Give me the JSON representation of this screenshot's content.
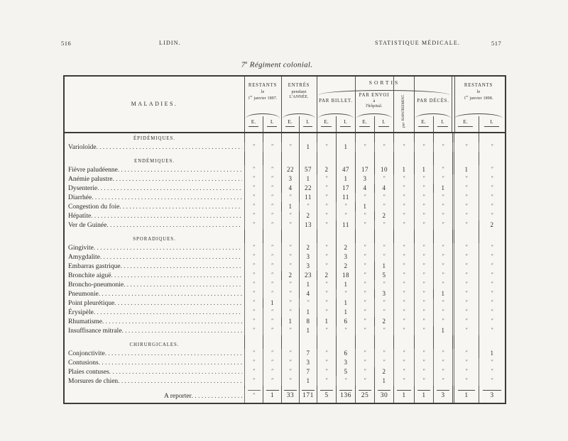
{
  "page": {
    "left_page_number": "516",
    "left_running_title": "LIDIN.",
    "right_running_title": "STATISTIQUE MÉDICALE.",
    "right_page_number": "517"
  },
  "title": {
    "num": "7",
    "sup": "e",
    "rest": "Régiment colonial."
  },
  "table": {
    "header": {
      "maladies": "MALADIES.",
      "sortis": "SORTIS",
      "e": "E.",
      "i": "I.",
      "restants_1897": {
        "l1": "RESTANTS",
        "l2": "le",
        "d": "1",
        "sup": "er",
        "rest": "janvier 1897."
      },
      "entres": {
        "l1": "ENTRÉS",
        "l2": "pendant",
        "l3": "L'ANNÉE."
      },
      "par_billet": "PAR BILLET.",
      "par_envoi": {
        "l1": "PAR ENVOI",
        "l2": "à",
        "l3": "l'hôpital."
      },
      "rapatriement": {
        "l1": "par",
        "l2": "RAPATRIEMENT."
      },
      "par_deces": "PAR DÉCÈS.",
      "restants_1898": {
        "l1": "RESTANTS",
        "l2": "le",
        "d": "1",
        "sup": "er",
        "rest": "janvier 1898."
      }
    },
    "columns": [
      "maladies",
      "restants-1897-e",
      "restants-1897-i",
      "entres-e",
      "entres-i",
      "billet-e",
      "billet-i",
      "envoi-e",
      "envoi-i",
      "rapatriement",
      "deces-e",
      "deces-i",
      "restants-1898-e",
      "restants-1898-i"
    ],
    "ditto": "″",
    "sections": [
      {
        "title": "ÉPIDÉMIQUES.",
        "rows": [
          {
            "label": "Varioloïde",
            "values": [
              "″",
              "″",
              "″",
              "1",
              "″",
              "1",
              "″",
              "″",
              "″",
              "″",
              "″",
              "″",
              "″"
            ]
          }
        ]
      },
      {
        "title": "ENDÉMIQUES.",
        "rows": [
          {
            "label": "Fièvre paludéenne",
            "values": [
              "″",
              "″",
              "22",
              "57",
              "2",
              "47",
              "17",
              "10",
              "1",
              "1",
              "″",
              "1",
              "″"
            ]
          },
          {
            "label": "Anémie palustre",
            "values": [
              "″",
              "″",
              "3",
              "1",
              "″",
              "1",
              "3",
              "″",
              "″",
              "″",
              "″",
              "″",
              "″"
            ]
          },
          {
            "label": "Dysenterie",
            "values": [
              "″",
              "″",
              "4",
              "22",
              "″",
              "17",
              "4",
              "4",
              "″",
              "″",
              "1",
              "″",
              "″"
            ]
          },
          {
            "label": "Diarrhée",
            "values": [
              "″",
              "″",
              "″",
              "11",
              "″",
              "11",
              "″",
              "″",
              "″",
              "″",
              "″",
              "″",
              "″"
            ]
          },
          {
            "label": "Congestion du foie",
            "values": [
              "″",
              "″",
              "1",
              "″",
              "″",
              "″",
              "1",
              "″",
              "″",
              "″",
              "″",
              "″",
              "″"
            ]
          },
          {
            "label": "Hépatite",
            "values": [
              "″",
              "″",
              "″",
              "2",
              "″",
              "″",
              "″",
              "2",
              "″",
              "″",
              "″",
              "″",
              "″"
            ]
          },
          {
            "label": "Ver de Guinée",
            "values": [
              "″",
              "″",
              "″",
              "13",
              "″",
              "11",
              "″",
              "″",
              "″",
              "″",
              "″",
              "″",
              "2"
            ]
          }
        ]
      },
      {
        "title": "SPORADIQUES.",
        "rows": [
          {
            "label": "Gingivite",
            "values": [
              "″",
              "″",
              "″",
              "2",
              "″",
              "2",
              "″",
              "″",
              "″",
              "″",
              "″",
              "″",
              "″"
            ]
          },
          {
            "label": "Amygdalite",
            "values": [
              "″",
              "″",
              "″",
              "3",
              "″",
              "3",
              "″",
              "″",
              "″",
              "″",
              "″",
              "″",
              "″"
            ]
          },
          {
            "label": "Embarras gastrique",
            "values": [
              "″",
              "″",
              "″",
              "3",
              "″",
              "2",
              "″",
              "1",
              "″",
              "″",
              "″",
              "″",
              "″"
            ]
          },
          {
            "label": "Bronchite aiguë",
            "values": [
              "″",
              "″",
              "2",
              "23",
              "2",
              "18",
              "″",
              "5",
              "″",
              "″",
              "″",
              "″",
              "″"
            ]
          },
          {
            "label": "Broncho-pneumonie",
            "values": [
              "″",
              "″",
              "″",
              "1",
              "″",
              "1",
              "″",
              "″",
              "″",
              "″",
              "″",
              "″",
              "″"
            ]
          },
          {
            "label": "Pneumonie",
            "values": [
              "″",
              "″",
              "″",
              "4",
              "″",
              "″",
              "″",
              "3",
              "″",
              "″",
              "1",
              "″",
              "″"
            ]
          },
          {
            "label": "Point pleurétique",
            "values": [
              "″",
              "1",
              "″",
              "″",
              "″",
              "1",
              "″",
              "″",
              "″",
              "″",
              "″",
              "″",
              "″"
            ]
          },
          {
            "label": "Érysipèle",
            "values": [
              "″",
              "″",
              "″",
              "1",
              "″",
              "1",
              "″",
              "″",
              "″",
              "″",
              "″",
              "″",
              "″"
            ]
          },
          {
            "label": "Rhumatisme",
            "values": [
              "″",
              "″",
              "1",
              "8",
              "1",
              "6",
              "″",
              "2",
              "″",
              "″",
              "″",
              "″",
              "″"
            ]
          },
          {
            "label": "Insuffisance mitrale",
            "values": [
              "″",
              "″",
              "″",
              "1",
              "″",
              "″",
              "″",
              "″",
              "″",
              "″",
              "1",
              "″",
              "″"
            ]
          }
        ]
      },
      {
        "title": "CHIRURGICALES.",
        "rows": [
          {
            "label": "Conjonctivite",
            "values": [
              "″",
              "″",
              "″",
              "7",
              "″",
              "6",
              "″",
              "″",
              "″",
              "″",
              "″",
              "″",
              "1"
            ]
          },
          {
            "label": "Contusions",
            "values": [
              "″",
              "″",
              "″",
              "3",
              "″",
              "3",
              "″",
              "″",
              "″",
              "″",
              "″",
              "″",
              "″"
            ]
          },
          {
            "label": "Plaies contuses",
            "values": [
              "″",
              "″",
              "″",
              "7",
              "″",
              "5",
              "″",
              "2",
              "″",
              "″",
              "″",
              "″",
              "″"
            ]
          },
          {
            "label": "Morsures de chien",
            "values": [
              "″",
              "″",
              "″",
              "1",
              "″",
              "″",
              "″",
              "1",
              "″",
              "″",
              "″",
              "″",
              "″"
            ]
          }
        ]
      }
    ],
    "total": {
      "label": "A reporter",
      "values": [
        "″",
        "1",
        "33",
        "171",
        "5",
        "136",
        "25",
        "30",
        "1",
        "1",
        "3",
        "1",
        "3"
      ]
    }
  }
}
